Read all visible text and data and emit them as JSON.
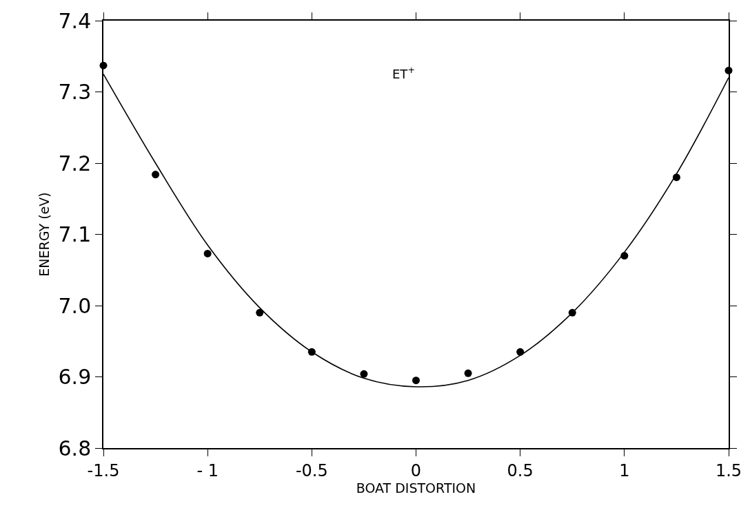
{
  "chart_data": {
    "type": "scatter",
    "xlabel": "BOAT DISTORTION",
    "ylabel": "ENERGY (eV)",
    "annotations": [
      "ET$^{+}$"
    ],
    "x": [
      -1.5,
      -1.25,
      -1.0,
      -0.75,
      -0.5,
      -0.25,
      0,
      0.25,
      0.5,
      0.75,
      1.0,
      1.25,
      1.5
    ],
    "series": [
      {
        "color": "#000000",
        "marker": "circle",
        "values": [
          7.337,
          7.184,
          7.073,
          6.99,
          6.935,
          6.904,
          6.895,
          6.905,
          6.935,
          6.99,
          7.07,
          7.18,
          7.33
        ]
      },
      {
        "type": "line",
        "color": "#000000",
        "marker": "none",
        "line_style": "solid",
        "values": [
          7.325,
          7.2,
          7.085,
          6.997,
          6.935,
          6.898,
          6.886,
          6.895,
          6.93,
          6.99,
          7.075,
          7.185,
          7.32
        ]
      }
    ],
    "xlim": [
      -1.5,
      1.5
    ],
    "ylim": [
      6.8,
      7.4
    ],
    "xticks": [
      -1.5,
      {
        "value": -1,
        "label": "- 1"
      },
      -0.5,
      0,
      0.5,
      1,
      1.5
    ],
    "yticks": [
      6.8,
      6.9,
      {
        "value": 7,
        "label": "7.0"
      },
      7.1,
      7.2,
      7.3,
      7.4
    ]
  }
}
